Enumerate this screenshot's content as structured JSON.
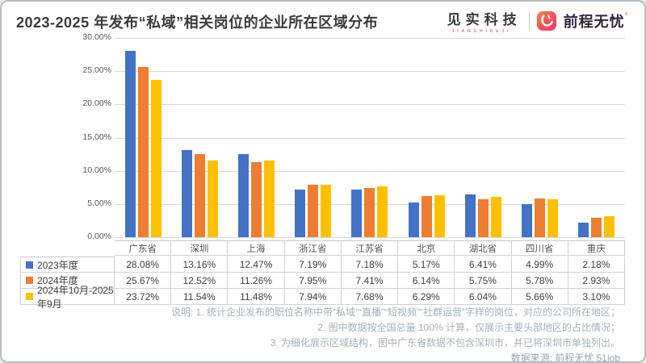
{
  "header": {
    "title": "2023-2025 年发布“私域”相关岗位的企业所在区域分布",
    "brand": {
      "jianshi": "见实科技",
      "jianshi_caption": "JIANSHIKEJI",
      "wuyou": "前程无忧",
      "wuyou_tick": "’",
      "logo_gradient": [
        "#f9854b",
        "#e63f6b"
      ]
    }
  },
  "chart_data": {
    "type": "bar",
    "title": "2023-2025 年发布“私域”相关岗位的企业所在区域分布",
    "categories": [
      "广东省",
      "深圳",
      "上海",
      "浙江省",
      "江苏省",
      "北京",
      "湖北省",
      "四川省",
      "重庆"
    ],
    "series": [
      {
        "name": "2023年度",
        "color": "#4472C4",
        "values": [
          28.08,
          13.16,
          12.47,
          7.19,
          7.18,
          5.17,
          6.41,
          4.99,
          2.18
        ]
      },
      {
        "name": "2024年度",
        "color": "#ED7D31",
        "values": [
          25.67,
          12.52,
          11.26,
          7.95,
          7.41,
          6.14,
          5.75,
          5.78,
          2.93
        ]
      },
      {
        "name": "2024年10月-2025年9月",
        "color": "#FFC000",
        "values": [
          23.72,
          11.54,
          11.48,
          7.94,
          7.68,
          6.29,
          6.04,
          5.66,
          3.1
        ]
      }
    ],
    "ylim": [
      0,
      30
    ],
    "ytick_step": 5,
    "ytick_suffix": "%",
    "grid": true,
    "legend_position": "table-left-column",
    "value_suffix": "%"
  },
  "notes": {
    "lines": [
      "说明: 1. 统计企业发布的职位名称中带“私域”“直播”“短视频”“社群运营”字样的岗位，对应的公司所在地区；",
      "2. 图中数据按全国总量 100% 计算，仅展示主要头部地区的占比情况；",
      "3. 为细化展示区域结构，图中广东省数据不包含深圳市，并已将深圳市单独列出。"
    ],
    "source": "数据来源: 前程无忧 51job"
  }
}
